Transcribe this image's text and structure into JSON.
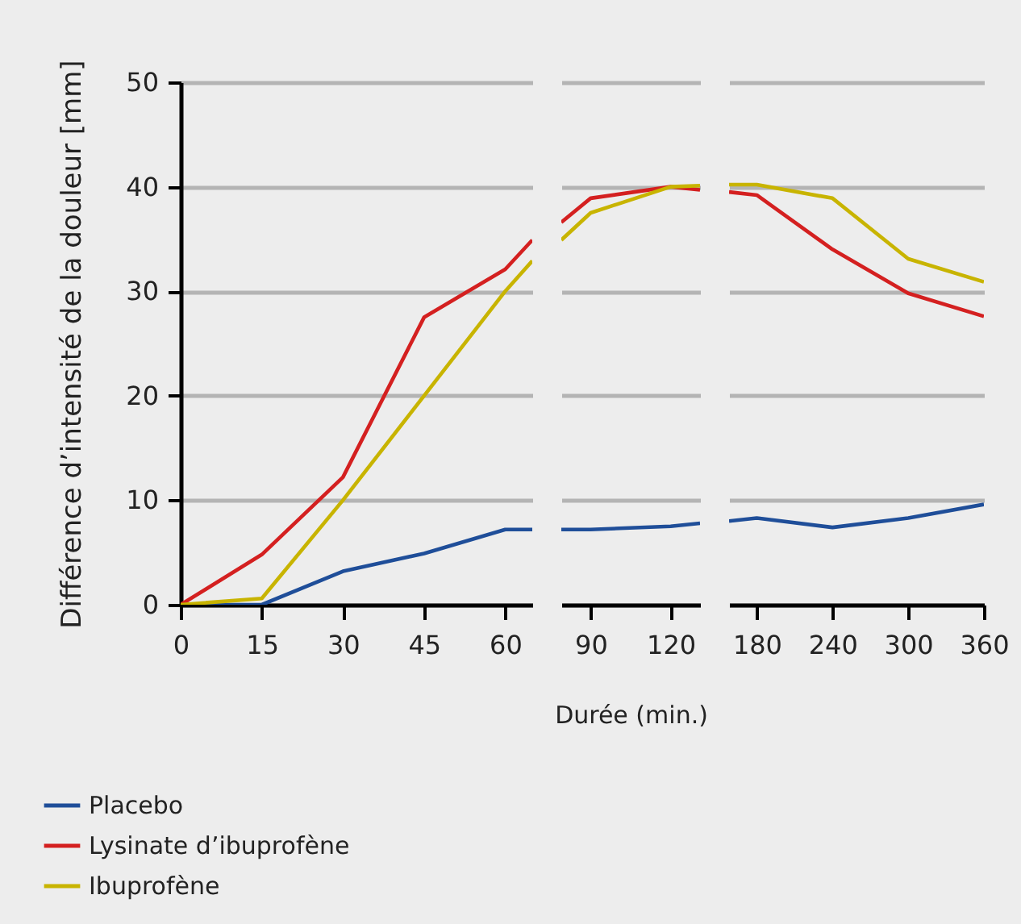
{
  "chart_data": [
    {
      "type": "line",
      "ylabel": "Différence d’intensité de la douleur [mm]",
      "x": [
        0,
        15,
        30,
        45,
        60,
        65
      ],
      "xlim": [
        0,
        65
      ],
      "xticks": [
        0,
        15,
        30,
        45,
        60
      ],
      "ylim": [
        0,
        50
      ],
      "yticks": [
        0,
        10,
        20,
        30,
        40,
        50
      ],
      "grid": "y",
      "legend": "bottom left",
      "marker": "none",
      "line_style": "solid",
      "series": [
        {
          "name": "Placebo",
          "color": "#1f4e99",
          "values": [
            0,
            0,
            3.2,
            4.9,
            7.2,
            7.2
          ]
        },
        {
          "name": "Lysinate d’ibuprofène",
          "color": "#d42020",
          "values": [
            0,
            4.8,
            12.2,
            27.5,
            32.1,
            34.9
          ]
        },
        {
          "name": "Ibuprofène",
          "color": "#c8b400",
          "values": [
            0,
            0.6,
            10,
            20,
            30,
            32.9
          ]
        }
      ]
    },
    {
      "type": "line",
      "xlabel": "Durée (min.)",
      "x": [
        79,
        90,
        120,
        131
      ],
      "xlim": [
        79,
        131
      ],
      "xticks": [
        90,
        120
      ],
      "ylim": [
        0,
        50
      ],
      "yticks": [
        0,
        10,
        20,
        30,
        40,
        50
      ],
      "grid": "y",
      "tick_labels": "x",
      "marker": "none",
      "line_style": "solid",
      "series": [
        {
          "color": "#1f4e99",
          "values": [
            7.2,
            7.2,
            7.5,
            7.8
          ]
        },
        {
          "color": "#d42020",
          "values": [
            36.6,
            38.9,
            40,
            39.7
          ]
        },
        {
          "color": "#c8b400",
          "values": [
            34.9,
            37.5,
            40,
            40.1
          ]
        }
      ]
    },
    {
      "type": "line",
      "x": [
        158,
        180,
        240,
        300,
        360
      ],
      "xlim": [
        158,
        360
      ],
      "xticks": [
        180,
        240,
        300,
        360
      ],
      "ylim": [
        0,
        50
      ],
      "yticks": [
        0,
        10,
        20,
        30,
        40,
        50
      ],
      "grid": "y",
      "tick_labels": "x",
      "marker": "none",
      "line_style": "solid",
      "series": [
        {
          "color": "#1f4e99",
          "values": [
            8.0,
            8.3,
            7.4,
            8.3,
            9.6
          ]
        },
        {
          "color": "#d42020",
          "values": [
            39.5,
            39.2,
            34,
            29.8,
            27.6
          ]
        },
        {
          "color": "#c8b400",
          "values": [
            40.2,
            40.2,
            38.9,
            33.1,
            30.9
          ]
        }
      ]
    }
  ]
}
